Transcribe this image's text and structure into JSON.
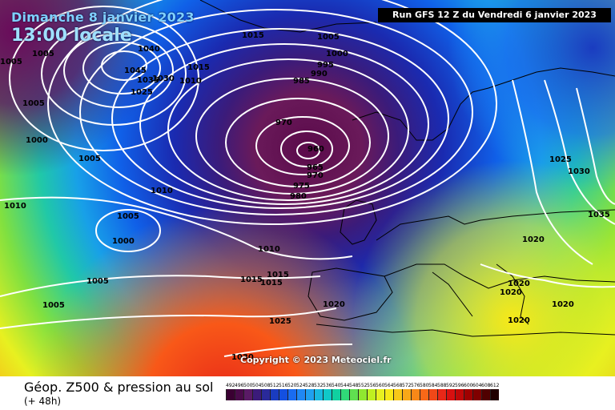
{
  "header": {
    "date": "Dimanche 8 janvier 2023",
    "time": "13:00 locale",
    "run": "Run GFS 12 Z du Vendredi 6 janvier 2023"
  },
  "copyright": "Copyright © 2023 Meteociel.fr",
  "footer": {
    "title": "Géop. Z500 & pression au sol",
    "subtitle": "(+ 48h)"
  },
  "legend": {
    "values": [
      "492",
      "496",
      "500",
      "504",
      "508",
      "512",
      "516",
      "520",
      "524",
      "528",
      "532",
      "536",
      "540",
      "544",
      "548",
      "552",
      "556",
      "560",
      "564",
      "568",
      "572",
      "576",
      "580",
      "584",
      "588",
      "592",
      "596",
      "600",
      "604",
      "608",
      "612"
    ],
    "colors": [
      "#3a0032",
      "#4a0a4a",
      "#5a1a66",
      "#3b1b7a",
      "#2a2a9a",
      "#1a3cc0",
      "#1450e0",
      "#1a6cf0",
      "#2088f4",
      "#20a0f0",
      "#18b8e0",
      "#10c8c8",
      "#10d0a0",
      "#30d878",
      "#60e050",
      "#90e830",
      "#c0f020",
      "#e8f020",
      "#f8e818",
      "#f8c818",
      "#f8a818",
      "#f88818",
      "#f86818",
      "#f04818",
      "#e82818",
      "#d81010",
      "#c00808",
      "#a00000",
      "#800000",
      "#500000",
      "#200000"
    ]
  },
  "isobars": [
    {
      "value": "1040"
    },
    {
      "value": "1045"
    },
    {
      "value": "1035"
    },
    {
      "value": "1030"
    },
    {
      "value": "1025"
    },
    {
      "value": "1015"
    },
    {
      "value": "1010"
    },
    {
      "value": "1005"
    },
    {
      "value": "1000"
    },
    {
      "value": "995"
    },
    {
      "value": "990"
    },
    {
      "value": "985"
    },
    {
      "value": "970"
    },
    {
      "value": "960"
    },
    {
      "value": "965"
    },
    {
      "value": "975"
    },
    {
      "value": "980"
    },
    {
      "value": "1020"
    }
  ],
  "contour_labels": [
    {
      "text": "1015"
    },
    {
      "text": "1005"
    },
    {
      "text": "1000"
    },
    {
      "text": "995"
    },
    {
      "text": "990"
    },
    {
      "text": "985"
    },
    {
      "text": "970"
    },
    {
      "text": "960"
    },
    {
      "text": "965"
    },
    {
      "text": "970"
    },
    {
      "text": "975"
    },
    {
      "text": "980"
    },
    {
      "text": "1040"
    },
    {
      "text": "1045"
    },
    {
      "text": "1035"
    },
    {
      "text": "1030"
    },
    {
      "text": "1025"
    },
    {
      "text": "1015"
    },
    {
      "text": "1010"
    },
    {
      "text": "1005"
    },
    {
      "text": "1000"
    },
    {
      "text": "1005"
    },
    {
      "text": "1010"
    },
    {
      "text": "1010"
    },
    {
      "text": "1005"
    },
    {
      "text": "1000"
    },
    {
      "text": "1005"
    },
    {
      "text": "1015"
    },
    {
      "text": "1010"
    },
    {
      "text": "1015"
    },
    {
      "text": "1015"
    },
    {
      "text": "1005"
    },
    {
      "text": "1020"
    },
    {
      "text": "1025"
    },
    {
      "text": "1030"
    },
    {
      "text": "1025"
    },
    {
      "text": "1030"
    },
    {
      "text": "1035"
    },
    {
      "text": "1020"
    },
    {
      "text": "1020"
    },
    {
      "text": "1020"
    },
    {
      "text": "1020"
    },
    {
      "text": "1020"
    },
    {
      "text": "1005"
    },
    {
      "text": "1005"
    }
  ]
}
